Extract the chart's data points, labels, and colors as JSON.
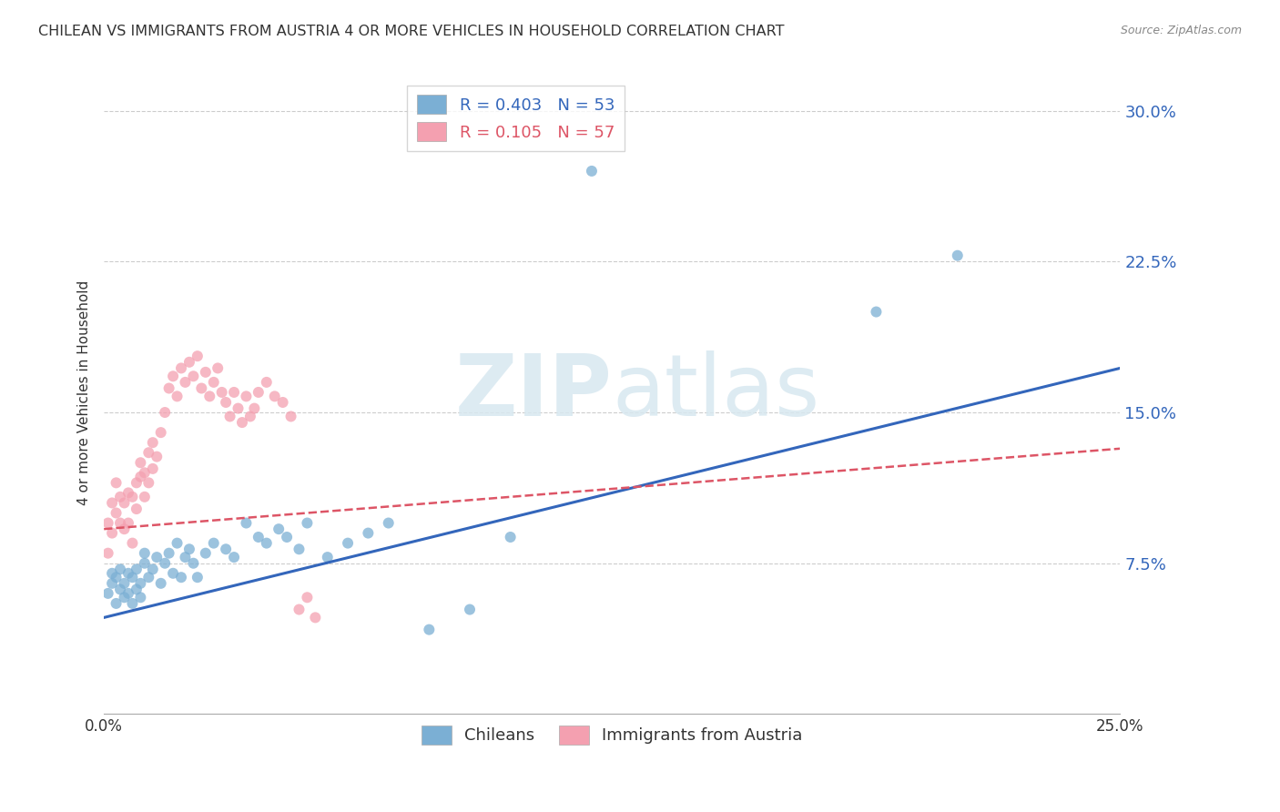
{
  "title": "CHILEAN VS IMMIGRANTS FROM AUSTRIA 4 OR MORE VEHICLES IN HOUSEHOLD CORRELATION CHART",
  "source": "Source: ZipAtlas.com",
  "ylabel": "4 or more Vehicles in Household",
  "xlim": [
    0.0,
    0.25
  ],
  "ylim": [
    0.0,
    0.32
  ],
  "xticks": [
    0.0,
    0.05,
    0.1,
    0.15,
    0.2,
    0.25
  ],
  "yticks": [
    0.0,
    0.075,
    0.15,
    0.225,
    0.3
  ],
  "ytick_labels": [
    "",
    "7.5%",
    "15.0%",
    "22.5%",
    "30.0%"
  ],
  "xtick_labels": [
    "0.0%",
    "",
    "",
    "",
    "",
    "25.0%"
  ],
  "background_color": "#ffffff",
  "blue_color": "#7bafd4",
  "pink_color": "#f4a0b0",
  "trend_blue": "#3366bb",
  "trend_pink": "#dd5566",
  "R_blue": 0.403,
  "N_blue": 53,
  "R_pink": 0.105,
  "N_pink": 57,
  "watermark_zip": "ZIP",
  "watermark_atlas": "atlas",
  "chilean_x": [
    0.001,
    0.002,
    0.002,
    0.003,
    0.003,
    0.004,
    0.004,
    0.005,
    0.005,
    0.006,
    0.006,
    0.007,
    0.007,
    0.008,
    0.008,
    0.009,
    0.009,
    0.01,
    0.01,
    0.011,
    0.012,
    0.013,
    0.014,
    0.015,
    0.016,
    0.017,
    0.018,
    0.019,
    0.02,
    0.021,
    0.022,
    0.023,
    0.025,
    0.027,
    0.03,
    0.032,
    0.035,
    0.038,
    0.04,
    0.043,
    0.045,
    0.048,
    0.05,
    0.055,
    0.06,
    0.065,
    0.07,
    0.08,
    0.09,
    0.1,
    0.12,
    0.19,
    0.21
  ],
  "chilean_y": [
    0.06,
    0.065,
    0.07,
    0.055,
    0.068,
    0.062,
    0.072,
    0.058,
    0.065,
    0.06,
    0.07,
    0.055,
    0.068,
    0.062,
    0.072,
    0.058,
    0.065,
    0.075,
    0.08,
    0.068,
    0.072,
    0.078,
    0.065,
    0.075,
    0.08,
    0.07,
    0.085,
    0.068,
    0.078,
    0.082,
    0.075,
    0.068,
    0.08,
    0.085,
    0.082,
    0.078,
    0.095,
    0.088,
    0.085,
    0.092,
    0.088,
    0.082,
    0.095,
    0.078,
    0.085,
    0.09,
    0.095,
    0.042,
    0.052,
    0.088,
    0.27,
    0.2,
    0.228
  ],
  "austria_x": [
    0.001,
    0.001,
    0.002,
    0.002,
    0.003,
    0.003,
    0.004,
    0.004,
    0.005,
    0.005,
    0.006,
    0.006,
    0.007,
    0.007,
    0.008,
    0.008,
    0.009,
    0.009,
    0.01,
    0.01,
    0.011,
    0.011,
    0.012,
    0.012,
    0.013,
    0.014,
    0.015,
    0.016,
    0.017,
    0.018,
    0.019,
    0.02,
    0.021,
    0.022,
    0.023,
    0.024,
    0.025,
    0.026,
    0.027,
    0.028,
    0.029,
    0.03,
    0.031,
    0.032,
    0.033,
    0.034,
    0.035,
    0.036,
    0.037,
    0.038,
    0.04,
    0.042,
    0.044,
    0.046,
    0.048,
    0.05,
    0.052
  ],
  "austria_y": [
    0.08,
    0.095,
    0.09,
    0.105,
    0.1,
    0.115,
    0.095,
    0.108,
    0.105,
    0.092,
    0.11,
    0.095,
    0.108,
    0.085,
    0.115,
    0.102,
    0.125,
    0.118,
    0.12,
    0.108,
    0.13,
    0.115,
    0.135,
    0.122,
    0.128,
    0.14,
    0.15,
    0.162,
    0.168,
    0.158,
    0.172,
    0.165,
    0.175,
    0.168,
    0.178,
    0.162,
    0.17,
    0.158,
    0.165,
    0.172,
    0.16,
    0.155,
    0.148,
    0.16,
    0.152,
    0.145,
    0.158,
    0.148,
    0.152,
    0.16,
    0.165,
    0.158,
    0.155,
    0.148,
    0.052,
    0.058,
    0.048
  ],
  "trend_blue_start_y": 0.048,
  "trend_blue_end_y": 0.172,
  "trend_pink_start_y": 0.092,
  "trend_pink_end_y": 0.132
}
